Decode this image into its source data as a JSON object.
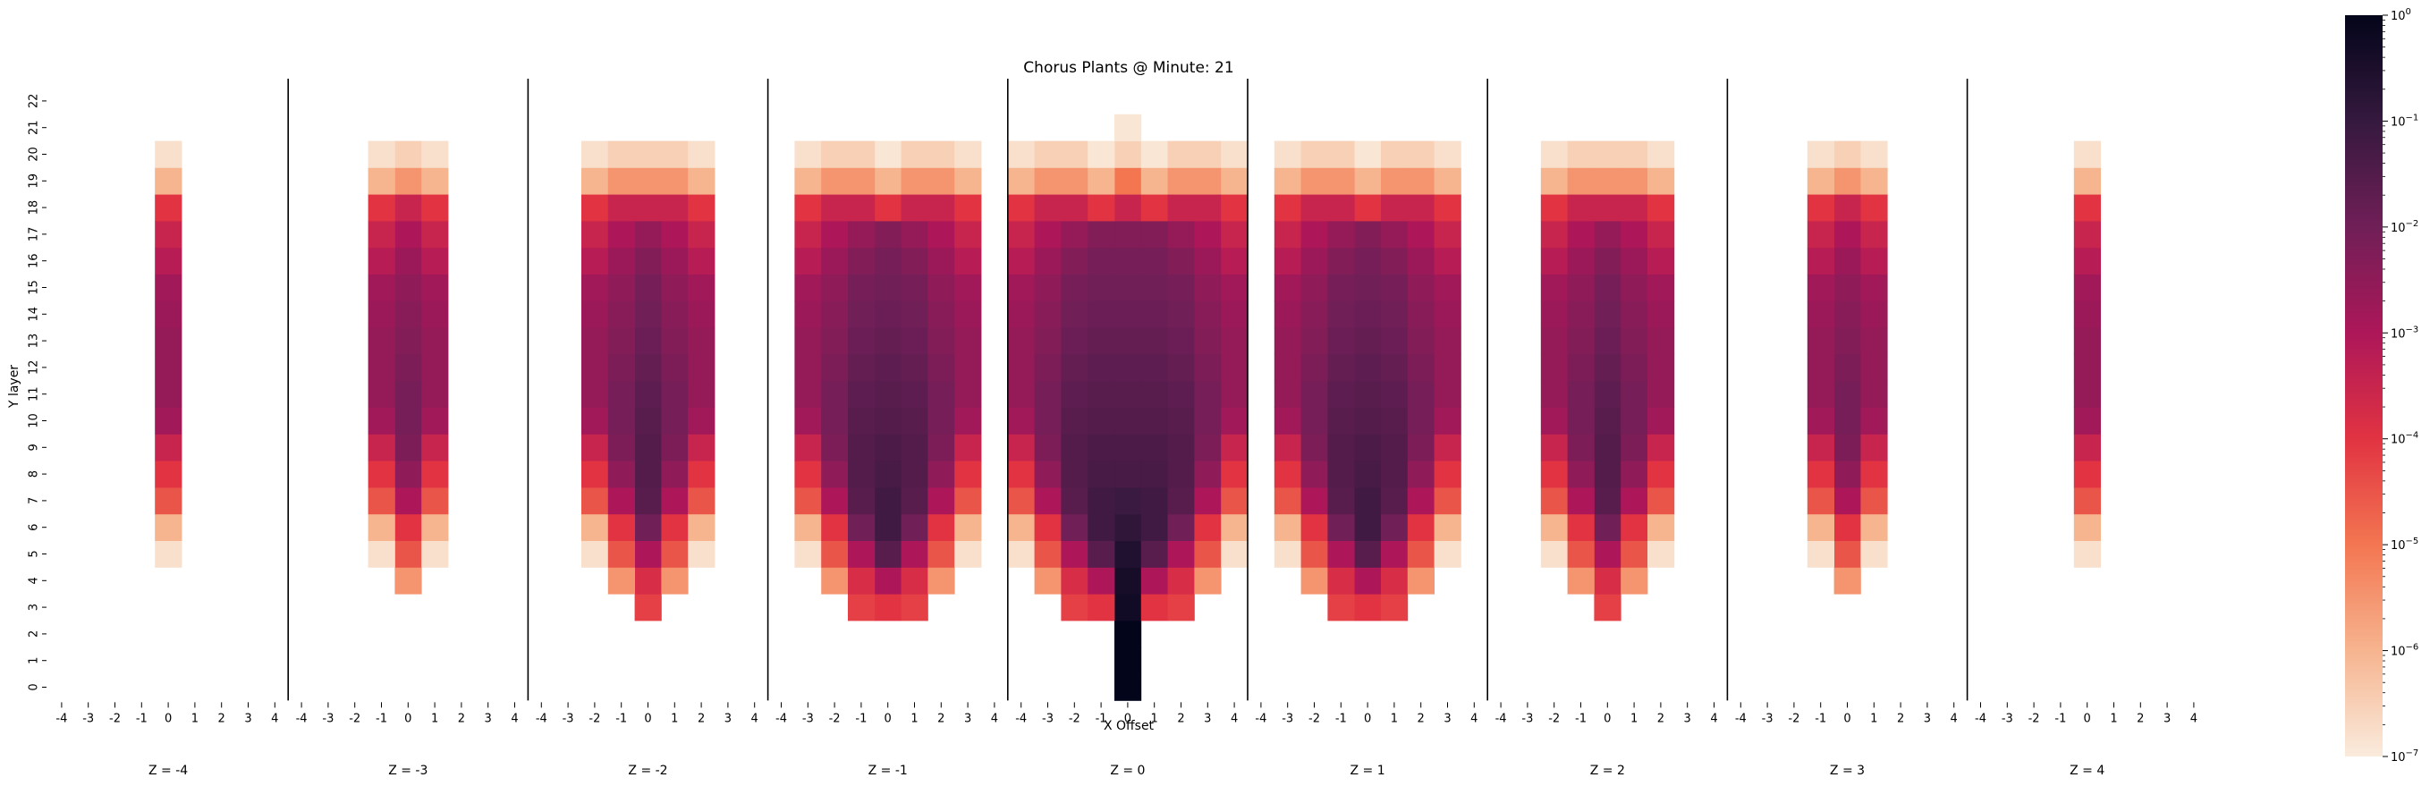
{
  "chart_data": {
    "type": "heatmap",
    "title": "Chorus Plants @ Minute: 21",
    "xlabel": "X Offset",
    "ylabel": "Y layer",
    "x_ticks": [
      "-4",
      "-3",
      "-2",
      "-1",
      "0",
      "1",
      "2",
      "3",
      "4"
    ],
    "y_ticks": [
      "0",
      "1",
      "2",
      "3",
      "4",
      "5",
      "6",
      "7",
      "8",
      "9",
      "10",
      "11",
      "12",
      "13",
      "14",
      "15",
      "16",
      "17",
      "18",
      "19",
      "20",
      "21",
      "22"
    ],
    "panels": [
      {
        "label": "Z = -4",
        "z": -4
      },
      {
        "label": "Z = -3",
        "z": -3
      },
      {
        "label": "Z = -2",
        "z": -2
      },
      {
        "label": "Z = -1",
        "z": -1
      },
      {
        "label": "Z = 0",
        "z": 0
      },
      {
        "label": "Z = 1",
        "z": 1
      },
      {
        "label": "Z = 2",
        "z": 2
      },
      {
        "label": "Z = 3",
        "z": 3
      },
      {
        "label": "Z = 4",
        "z": 4
      }
    ],
    "color_scale": {
      "type": "log",
      "range": [
        1e-07,
        1
      ],
      "tick_labels": [
        "10^0",
        "10^-1",
        "10^-2",
        "10^-3",
        "10^-4",
        "10^-5",
        "10^-6",
        "10^-7"
      ],
      "colormap": "rocket_r",
      "stops": [
        "#faebdd",
        "#f6b48f",
        "#f37651",
        "#e13342",
        "#ad1759",
        "#701f57",
        "#35193e",
        "#03051a"
      ]
    },
    "value_encoding": "log10 of fraction; missing = empty",
    "profiles": {
      "center": [
        0,
        0,
        0,
        -0.3,
        -0.4,
        -0.6,
        -0.9,
        -1.1,
        -1.3,
        -1.4,
        -1.5,
        -1.6,
        -1.7,
        -1.8,
        -1.9,
        -2.0,
        -2.1,
        -2.3,
        -3.5,
        -5.0,
        -6.5,
        -6.9,
        null
      ],
      "near": [
        null,
        null,
        null,
        -4.0,
        -3.0,
        -1.6,
        -1.2,
        -1.2,
        -1.3,
        -1.4,
        -1.5,
        -1.6,
        -1.7,
        -1.8,
        -1.9,
        -2.0,
        -2.1,
        -2.3,
        -4.0,
        -6.0,
        -6.9,
        null,
        null
      ],
      "mid": [
        null,
        null,
        null,
        -4.2,
        -3.8,
        -3.0,
        -2.0,
        -1.6,
        -1.5,
        -1.5,
        -1.6,
        -1.7,
        -1.8,
        -1.9,
        -2.0,
        -2.1,
        -2.3,
        -2.6,
        -3.5,
        -5.5,
        -6.5,
        null,
        null
      ],
      "far": [
        null,
        null,
        null,
        null,
        -5.5,
        -4.5,
        -4.0,
        -3.0,
        -2.5,
        -2.2,
        -2.1,
        -2.1,
        -2.2,
        -2.3,
        -2.4,
        -2.5,
        -2.7,
        -3.0,
        -3.5,
        -5.5,
        -6.5,
        null,
        null
      ],
      "edge": [
        null,
        null,
        null,
        null,
        null,
        -6.8,
        -6.0,
        -4.5,
        -4.0,
        -3.5,
        -2.8,
        -2.6,
        -2.6,
        -2.6,
        -2.7,
        -2.8,
        -3.2,
        -3.5,
        -4.0,
        -6.0,
        -6.8,
        null,
        null
      ]
    },
    "offsets": {
      "-4": {
        "0": "edge"
      },
      "-3": {
        "-1": "edge",
        "0": "far",
        "1": "edge"
      },
      "-2": {
        "-2": "edge",
        "-1": "far",
        "0": "mid",
        "1": "far",
        "2": "edge"
      },
      "-1": {
        "-3": "edge",
        "-2": "far",
        "-1": "mid",
        "0": "near",
        "1": "mid",
        "2": "far",
        "3": "edge"
      },
      "0": {
        "-4": "edge",
        "-3": "far",
        "-2": "mid",
        "-1": "near",
        "0": "center",
        "1": "near",
        "2": "mid",
        "3": "far",
        "4": "edge"
      },
      "1": {
        "-3": "edge",
        "-2": "far",
        "-1": "mid",
        "0": "near",
        "1": "mid",
        "2": "far",
        "3": "edge"
      },
      "2": {
        "-2": "edge",
        "-1": "far",
        "0": "mid",
        "1": "far",
        "2": "edge"
      },
      "3": {
        "-1": "edge",
        "0": "far",
        "1": "edge"
      },
      "4": {
        "0": "edge"
      }
    }
  }
}
